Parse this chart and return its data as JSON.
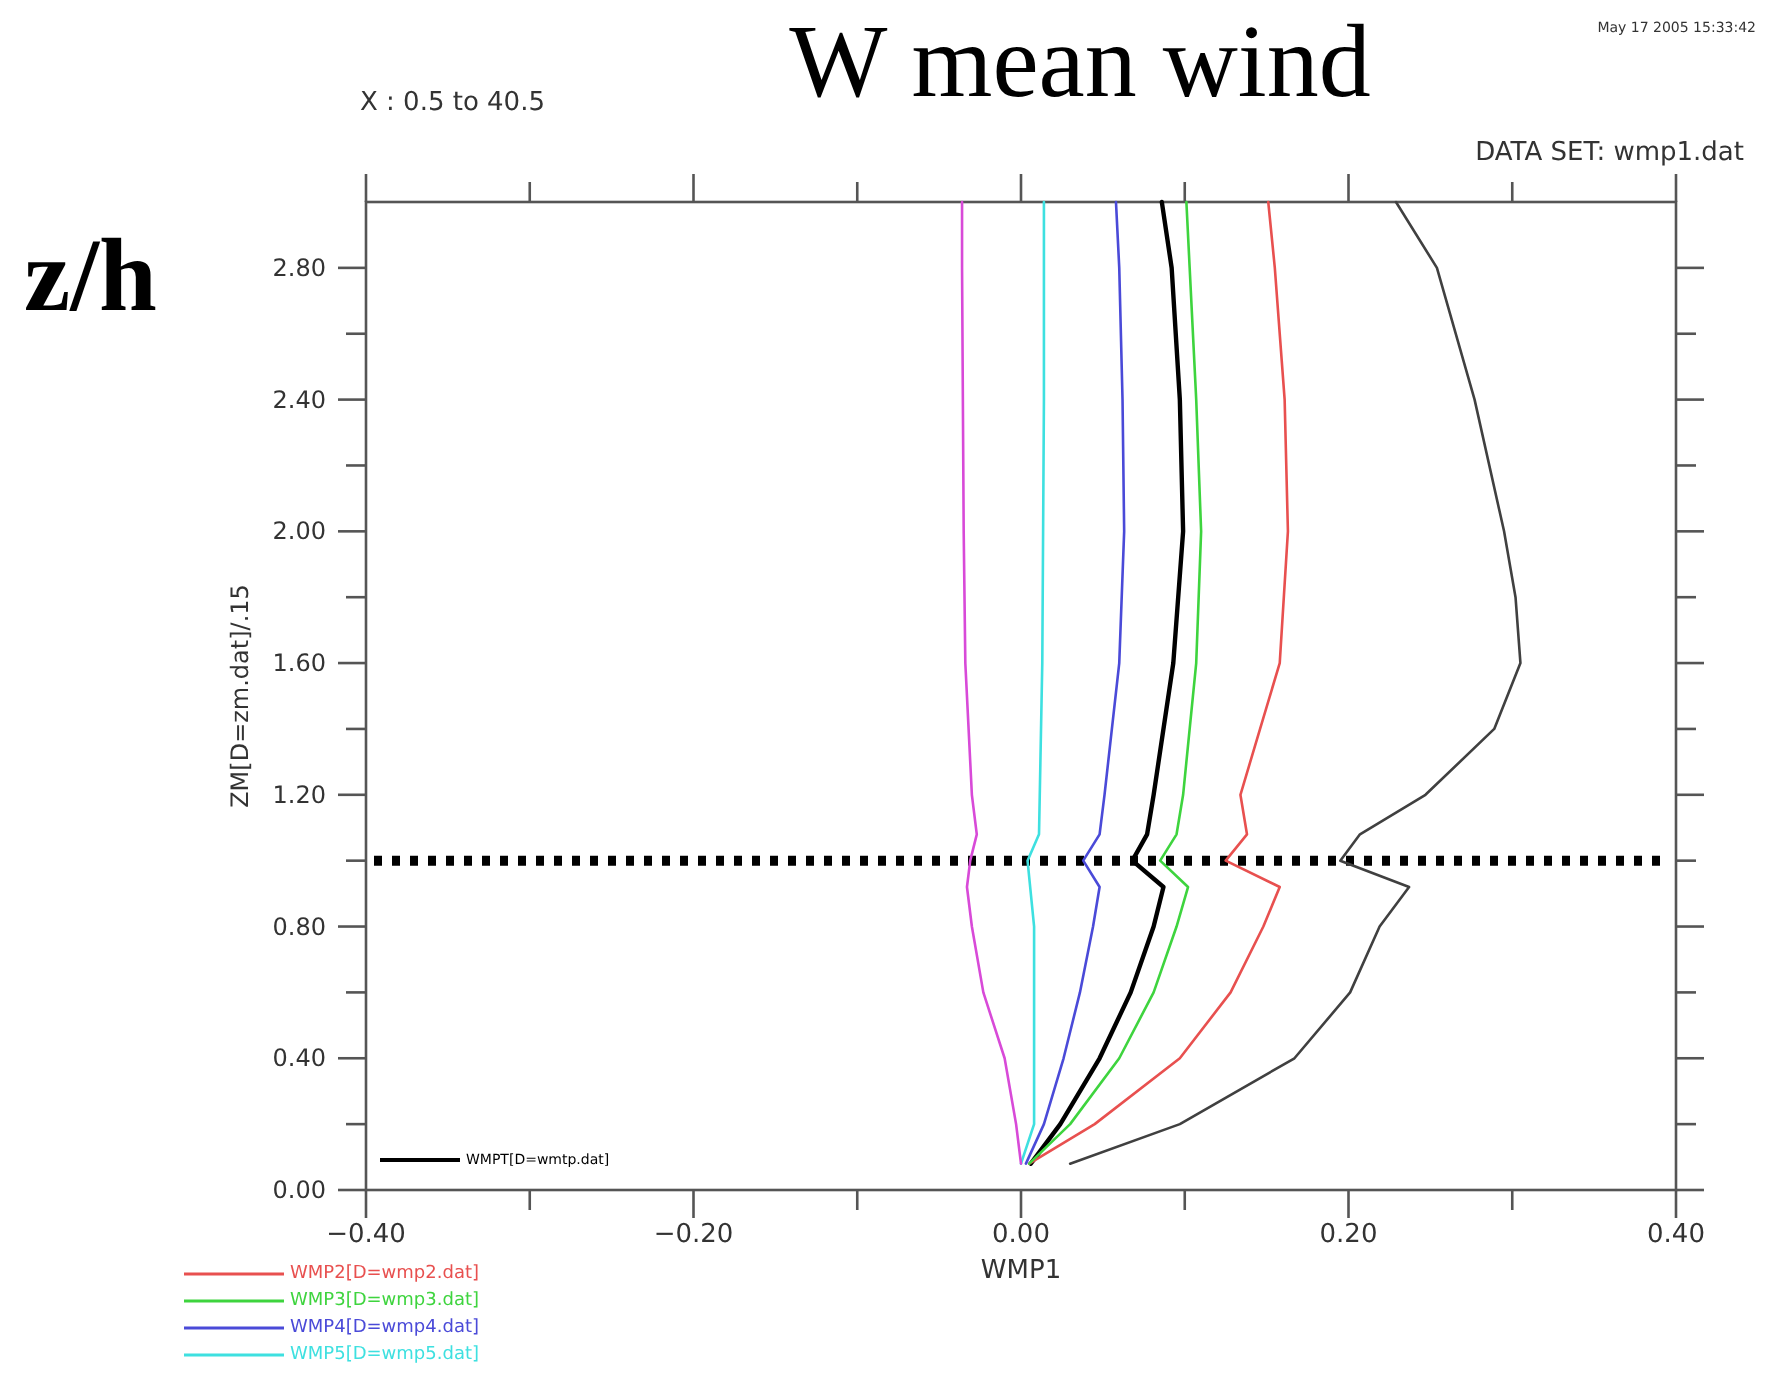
{
  "chart_data": {
    "type": "line",
    "title": "W mean wind",
    "xlabel": "WMP1",
    "ylabel": "ZM[D=zm.dat]/.15",
    "annotations": [
      "z/h",
      "X : 0.5 to 40.5",
      "DATA SET: wmp1.dat",
      "May 17 2005 15:33:42"
    ],
    "xlim": [
      -0.4,
      0.4
    ],
    "ylim": [
      0,
      3
    ],
    "xticks": [
      {
        "value": -0.4,
        "label": "−0.40"
      },
      {
        "value": -0.3,
        "label": null
      },
      {
        "value": -0.2,
        "label": "−0.20"
      },
      {
        "value": -0.1,
        "label": null
      },
      {
        "value": 0,
        "label": "0.00"
      },
      {
        "value": 0.1,
        "label": null
      },
      {
        "value": 0.2,
        "label": "0.20"
      },
      {
        "value": 0.3,
        "label": null
      },
      {
        "value": 0.4,
        "label": "0.40"
      }
    ],
    "yticks": [
      {
        "value": 0,
        "label": "0.00"
      },
      {
        "value": 0.2,
        "label": null
      },
      {
        "value": 0.4,
        "label": "0.40"
      },
      {
        "value": 0.6,
        "label": null
      },
      {
        "value": 0.8,
        "label": "0.80"
      },
      {
        "value": 1.0,
        "label": null
      },
      {
        "value": 1.2,
        "label": "1.20"
      },
      {
        "value": 1.4,
        "label": null
      },
      {
        "value": 1.6,
        "label": "1.60"
      },
      {
        "value": 1.8,
        "label": null
      },
      {
        "value": 2.0,
        "label": "2.00"
      },
      {
        "value": 2.2,
        "label": null
      },
      {
        "value": 2.4,
        "label": "2.40"
      },
      {
        "value": 2.6,
        "label": null
      },
      {
        "value": 2.8,
        "label": "2.80"
      }
    ],
    "grid": false,
    "legend": "bottom left",
    "marker": "none",
    "line_style": "solid",
    "ref_lines": [
      {
        "axis": "y",
        "value": 1.0,
        "color": "#000000",
        "line_style": "dotted"
      }
    ],
    "series": [
      {
        "color": "#404040",
        "x": [
          0.03,
          0.097,
          0.167,
          0.201,
          0.219,
          0.237,
          0.195,
          0.207,
          0.247,
          0.289,
          0.305,
          0.302,
          0.295,
          0.277,
          0.254,
          0.229
        ],
        "values": [
          0.08,
          0.2,
          0.4,
          0.6,
          0.8,
          0.92,
          1.0,
          1.08,
          1.2,
          1.4,
          1.6,
          1.8,
          2.0,
          2.4,
          2.8,
          3.0
        ]
      },
      {
        "name": "WMPT[D=wmtp.dat]",
        "color": "#000000",
        "x": [
          0.006,
          0.024,
          0.048,
          0.067,
          0.081,
          0.087,
          0.068,
          0.077,
          0.081,
          0.093,
          0.099,
          0.097,
          0.092,
          0.086
        ],
        "values": [
          0.08,
          0.2,
          0.4,
          0.6,
          0.8,
          0.92,
          1.0,
          1.08,
          1.2,
          1.6,
          2.0,
          2.4,
          2.8,
          3.0
        ]
      },
      {
        "name": "WMP2[D=wmp2.dat]",
        "color": "#e8504f",
        "x": [
          0.005,
          0.045,
          0.097,
          0.128,
          0.148,
          0.158,
          0.125,
          0.138,
          0.134,
          0.146,
          0.158,
          0.163,
          0.161,
          0.155,
          0.151
        ],
        "values": [
          0.08,
          0.2,
          0.4,
          0.6,
          0.8,
          0.92,
          1.0,
          1.08,
          1.2,
          1.4,
          1.6,
          2.0,
          2.4,
          2.8,
          3.0
        ]
      },
      {
        "name": "WMP3[D=wmp3.dat]",
        "color": "#3ed43e",
        "x": [
          0.005,
          0.03,
          0.06,
          0.081,
          0.095,
          0.102,
          0.085,
          0.095,
          0.099,
          0.107,
          0.11,
          0.107,
          0.103,
          0.101
        ],
        "values": [
          0.08,
          0.2,
          0.4,
          0.6,
          0.8,
          0.92,
          1.0,
          1.08,
          1.2,
          1.6,
          2.0,
          2.4,
          2.8,
          3.0
        ]
      },
      {
        "name": "WMP4[D=wmp4.dat]",
        "color": "#4a4ad8",
        "x": [
          0.003,
          0.014,
          0.026,
          0.036,
          0.044,
          0.048,
          0.038,
          0.048,
          0.051,
          0.06,
          0.063,
          0.062,
          0.06,
          0.058
        ],
        "values": [
          0.08,
          0.2,
          0.4,
          0.6,
          0.8,
          0.92,
          1.0,
          1.08,
          1.2,
          1.6,
          2.0,
          2.4,
          2.8,
          3.0
        ]
      },
      {
        "name": "WMP5[D=wmp5.dat]",
        "color": "#3ee0e0",
        "x": [
          0.0,
          0.008,
          0.008,
          0.008,
          0.004,
          0.011,
          0.013,
          0.014,
          0.014
        ],
        "values": [
          0.08,
          0.2,
          0.4,
          0.8,
          1.0,
          1.08,
          1.6,
          2.4,
          3.0
        ]
      },
      {
        "color": "#d84ad8",
        "x": [
          0.0,
          -0.003,
          -0.01,
          -0.023,
          -0.03,
          -0.033,
          -0.031,
          -0.027,
          -0.03,
          -0.034,
          -0.035,
          -0.036,
          -0.036
        ],
        "values": [
          0.08,
          0.2,
          0.4,
          0.6,
          0.8,
          0.92,
          1.0,
          1.08,
          1.2,
          1.6,
          2.0,
          2.8,
          3.0
        ]
      }
    ]
  }
}
